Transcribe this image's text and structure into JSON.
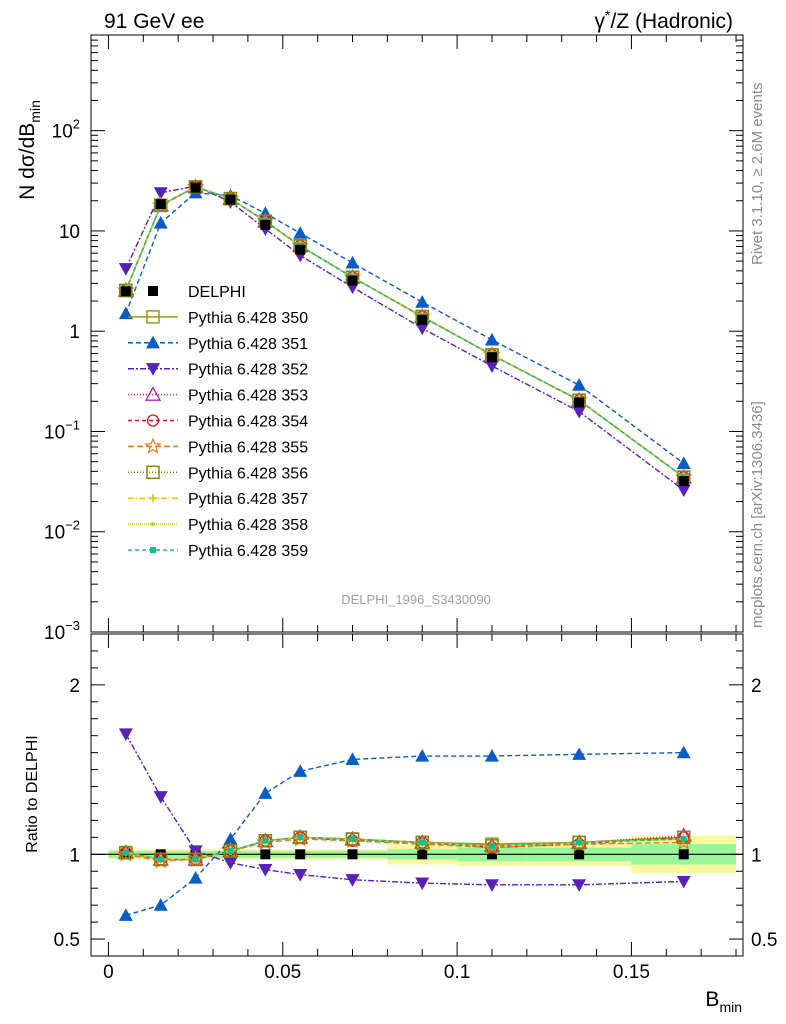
{
  "header": {
    "left_title": "91 GeV ee",
    "right_title_prefix": "γ",
    "right_title_sup": "*",
    "right_title_suffix": "/Z (Hadronic)"
  },
  "side_labels": {
    "rivet": "Rivet 3.1.10, ≥ 2.6M events",
    "mcplots": "mcplots.cern.ch [arXiv:1306.3436]"
  },
  "watermark": "DELPHI_1996_S3430090",
  "colors": {
    "data": "#000000",
    "p350": "#9a9a1e",
    "p351": "#0a5cc6",
    "p352": "#5a21b8",
    "p353": "#b420b0",
    "p354": "#e0142c",
    "p355": "#f07818",
    "p356": "#7a8c10",
    "p357": "#f0c010",
    "p358": "#c8d020",
    "p359": "#10c090",
    "band_inner": "#98f898",
    "band_outer": "#f8f8a0"
  },
  "chart_data": [
    {
      "type": "line",
      "panel": "main",
      "xlabel_main": "B",
      "xlabel_sub": "min",
      "ylabel_prefix": "N dσ/dB",
      "ylabel_sub": "min",
      "yscale": "log",
      "xlim": [
        -0.005,
        0.182
      ],
      "ylim": [
        0.001,
        900
      ],
      "y_ticks": [
        {
          "v": 100,
          "base": "10",
          "exp": "2"
        },
        {
          "v": 10,
          "base": "10",
          "exp": ""
        },
        {
          "v": 1,
          "base": "1",
          "exp": ""
        },
        {
          "v": 0.1,
          "base": "10",
          "exp": "−1"
        },
        {
          "v": 0.01,
          "base": "10",
          "exp": "−2"
        },
        {
          "v": 0.001,
          "base": "10",
          "exp": "−3"
        }
      ],
      "x": [
        0.005,
        0.015,
        0.025,
        0.035,
        0.045,
        0.055,
        0.07,
        0.09,
        0.11,
        0.135,
        0.165
      ],
      "series": [
        {
          "name": "DELPHI",
          "key": "data",
          "marker": "square-filled",
          "dash": "none",
          "values": [
            2.5,
            18.5,
            27.0,
            20.5,
            11.5,
            6.5,
            3.2,
            1.3,
            0.55,
            0.195,
            0.032
          ]
        },
        {
          "name": "Pythia 6.428 350",
          "key": "p350",
          "marker": "square-open",
          "dash": "solid",
          "values": [
            2.55,
            18.0,
            27.5,
            21.0,
            12.5,
            7.1,
            3.45,
            1.4,
            0.58,
            0.205,
            0.035
          ]
        },
        {
          "name": "Pythia 6.428 351",
          "key": "p351",
          "marker": "triangle-up",
          "dash": "5,3",
          "values": [
            1.5,
            12.0,
            24.0,
            22.5,
            15.0,
            9.5,
            4.8,
            1.95,
            0.82,
            0.29,
            0.048
          ]
        },
        {
          "name": "Pythia 6.428 352",
          "key": "p352",
          "marker": "triangle-down",
          "dash": "6,2,2,2",
          "values": [
            4.2,
            24.0,
            28.0,
            19.5,
            10.5,
            5.7,
            2.75,
            1.07,
            0.45,
            0.158,
            0.026
          ]
        },
        {
          "name": "Pythia 6.428 353",
          "key": "p353",
          "marker": "triangle-open",
          "dash": "1,2",
          "values": [
            2.55,
            18.0,
            27.5,
            21.0,
            12.5,
            7.1,
            3.45,
            1.4,
            0.58,
            0.205,
            0.035
          ]
        },
        {
          "name": "Pythia 6.428 354",
          "key": "p354",
          "marker": "circle-open",
          "dash": "4,3",
          "values": [
            2.55,
            18.0,
            27.5,
            21.0,
            12.5,
            7.1,
            3.45,
            1.4,
            0.58,
            0.205,
            0.035
          ]
        },
        {
          "name": "Pythia 6.428 355",
          "key": "p355",
          "marker": "star-open",
          "dash": "6,3",
          "values": [
            2.55,
            18.0,
            27.5,
            21.0,
            12.5,
            7.1,
            3.45,
            1.4,
            0.58,
            0.205,
            0.035
          ]
        },
        {
          "name": "Pythia 6.428 356",
          "key": "p356",
          "marker": "square-open",
          "dash": "1,2",
          "values": [
            2.55,
            18.0,
            27.5,
            21.0,
            12.5,
            7.1,
            3.45,
            1.4,
            0.58,
            0.205,
            0.035
          ]
        },
        {
          "name": "Pythia 6.428 357",
          "key": "p357",
          "marker": "plus",
          "dash": "6,2,1,2",
          "values": [
            2.55,
            18.0,
            27.5,
            21.0,
            12.5,
            7.1,
            3.45,
            1.4,
            0.58,
            0.205,
            0.035
          ]
        },
        {
          "name": "Pythia 6.428 358",
          "key": "p358",
          "marker": "dot",
          "dash": "1,1",
          "values": [
            2.55,
            18.0,
            27.5,
            21.0,
            12.5,
            7.1,
            3.45,
            1.4,
            0.58,
            0.205,
            0.035
          ]
        },
        {
          "name": "Pythia 6.428 359",
          "key": "p359",
          "marker": "square-filled-small",
          "dash": "4,3",
          "values": [
            2.55,
            18.0,
            27.5,
            21.0,
            12.5,
            7.1,
            3.45,
            1.4,
            0.58,
            0.205,
            0.035
          ]
        }
      ]
    },
    {
      "type": "line",
      "panel": "ratio",
      "ylabel": "Ratio to DELPHI",
      "xlim": [
        -0.005,
        0.182
      ],
      "ylim": [
        0.4,
        2.3
      ],
      "y_ticks": [
        "2",
        "1",
        "0.5"
      ],
      "x_ticks": [
        "0",
        "0.05",
        "0.1",
        "0.15"
      ],
      "band_edges": [
        0,
        0.01,
        0.02,
        0.03,
        0.04,
        0.05,
        0.06,
        0.08,
        0.1,
        0.12,
        0.15,
        0.18
      ],
      "band_inner": [
        0.02,
        0.02,
        0.02,
        0.02,
        0.02,
        0.02,
        0.02,
        0.03,
        0.04,
        0.04,
        0.06
      ],
      "band_outer": [
        0.03,
        0.03,
        0.03,
        0.03,
        0.03,
        0.03,
        0.03,
        0.06,
        0.07,
        0.07,
        0.11
      ],
      "x": [
        0.005,
        0.015,
        0.025,
        0.035,
        0.045,
        0.055,
        0.07,
        0.09,
        0.11,
        0.135,
        0.165
      ],
      "series": [
        {
          "name": "Pythia 6.428 350",
          "key": "p350",
          "values": [
            1.01,
            0.97,
            0.97,
            1.02,
            1.08,
            1.1,
            1.09,
            1.07,
            1.06,
            1.07,
            1.1
          ]
        },
        {
          "name": "Pythia 6.428 351",
          "key": "p351",
          "values": [
            0.64,
            0.7,
            0.86,
            1.09,
            1.36,
            1.49,
            1.56,
            1.58,
            1.58,
            1.59,
            1.6
          ]
        },
        {
          "name": "Pythia 6.428 352",
          "key": "p352",
          "values": [
            1.71,
            1.34,
            1.02,
            0.95,
            0.91,
            0.88,
            0.85,
            0.83,
            0.82,
            0.82,
            0.84
          ]
        },
        {
          "name": "Pythia 6.428 353",
          "key": "p353",
          "values": [
            1.01,
            0.97,
            0.97,
            1.02,
            1.08,
            1.1,
            1.09,
            1.07,
            1.05,
            1.07,
            1.11
          ]
        },
        {
          "name": "Pythia 6.428 354",
          "key": "p354",
          "values": [
            1.01,
            0.97,
            0.97,
            1.02,
            1.08,
            1.1,
            1.08,
            1.07,
            1.04,
            1.06,
            1.1
          ]
        },
        {
          "name": "Pythia 6.428 355",
          "key": "p355",
          "values": [
            1.0,
            0.96,
            0.97,
            1.02,
            1.07,
            1.09,
            1.08,
            1.06,
            1.04,
            1.06,
            1.07
          ]
        },
        {
          "name": "Pythia 6.428 356",
          "key": "p356",
          "values": [
            1.01,
            0.97,
            0.97,
            1.02,
            1.08,
            1.1,
            1.09,
            1.07,
            1.05,
            1.07,
            1.1
          ]
        },
        {
          "name": "Pythia 6.428 357",
          "key": "p357",
          "values": [
            1.01,
            0.97,
            0.97,
            1.02,
            1.08,
            1.1,
            1.09,
            1.07,
            1.05,
            1.07,
            1.09
          ]
        },
        {
          "name": "Pythia 6.428 358",
          "key": "p358",
          "values": [
            1.01,
            0.97,
            0.97,
            1.02,
            1.08,
            1.1,
            1.09,
            1.07,
            1.05,
            1.07,
            1.09
          ]
        },
        {
          "name": "Pythia 6.428 359",
          "key": "p359",
          "values": [
            1.01,
            0.97,
            0.97,
            1.02,
            1.08,
            1.1,
            1.09,
            1.07,
            1.05,
            1.07,
            1.09
          ]
        }
      ]
    }
  ]
}
